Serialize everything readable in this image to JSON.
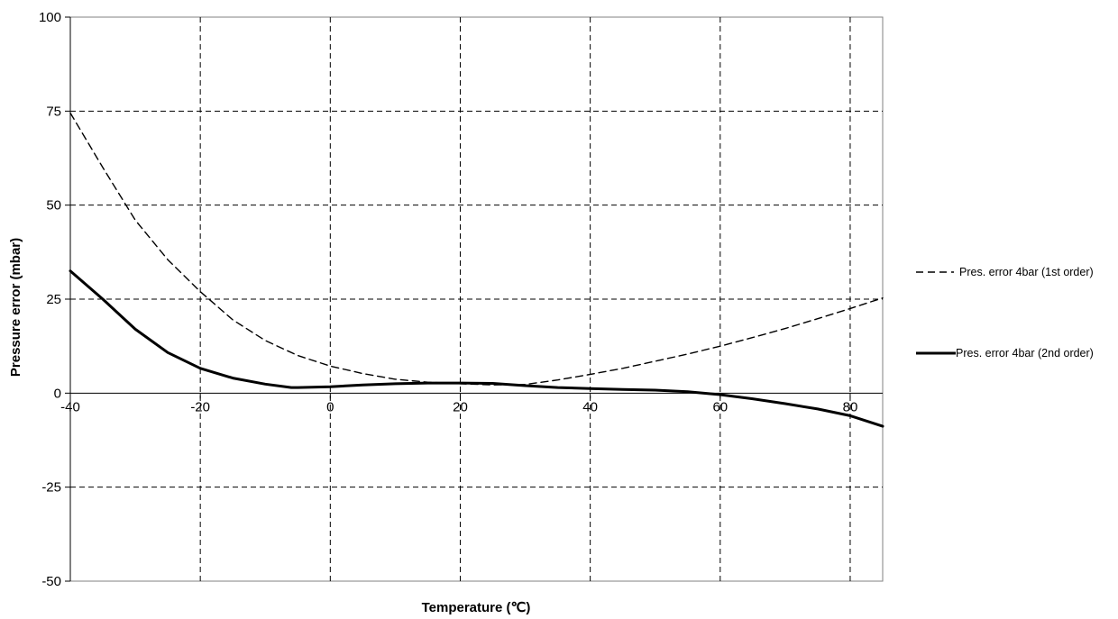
{
  "chart_data": {
    "type": "line",
    "title": "",
    "xlabel": "Temperature (℃)",
    "ylabel": "Pressure error (mbar)",
    "xlim": [
      -40,
      85
    ],
    "ylim": [
      -50,
      100
    ],
    "x_ticks": [
      -40,
      -20,
      0,
      20,
      40,
      60,
      80
    ],
    "y_ticks": [
      -50,
      -25,
      0,
      25,
      50,
      75,
      100
    ],
    "x_tick_labels": [
      "-40",
      "-20",
      "0",
      "20",
      "40",
      "60",
      "80"
    ],
    "y_tick_labels": [
      "-50",
      "-25",
      "0",
      "25",
      "50",
      "75",
      "100"
    ],
    "grid": true,
    "grid_style": "dashed",
    "legend_position": "right",
    "series": [
      {
        "name": "Pres. error 4bar (1st order)",
        "style": "dashed",
        "color": "#000000",
        "x": [
          -40,
          -35,
          -30,
          -25,
          -20,
          -15,
          -10,
          -5,
          0,
          5,
          10,
          15,
          20,
          25,
          30,
          35,
          40,
          45,
          50,
          55,
          60,
          65,
          70,
          75,
          80,
          85
        ],
        "y": [
          74.5,
          60,
          46,
          35.5,
          27,
          19.5,
          14,
          10,
          7.2,
          5.2,
          3.7,
          2.9,
          2.5,
          2.2,
          2.3,
          3.5,
          5,
          6.6,
          8.5,
          10.4,
          12.5,
          14.8,
          17.2,
          19.8,
          22.5,
          25.3
        ]
      },
      {
        "name": "Pres. error 4bar (2nd order)",
        "style": "solid",
        "color": "#000000",
        "x": [
          -40,
          -35,
          -30,
          -25,
          -20,
          -15,
          -10,
          -6,
          -5,
          0,
          5,
          10,
          15,
          20,
          25,
          30,
          35,
          40,
          45,
          50,
          55,
          60,
          65,
          70,
          75,
          80,
          85
        ],
        "y": [
          32.5,
          25,
          17,
          10.8,
          6.6,
          4,
          2.4,
          1.5,
          1.5,
          1.7,
          2.2,
          2.5,
          2.7,
          2.7,
          2.6,
          2,
          1.5,
          1.2,
          1,
          0.8,
          0.4,
          -0.4,
          -1.5,
          -2.8,
          -4.2,
          -6,
          -8.8
        ]
      }
    ]
  }
}
